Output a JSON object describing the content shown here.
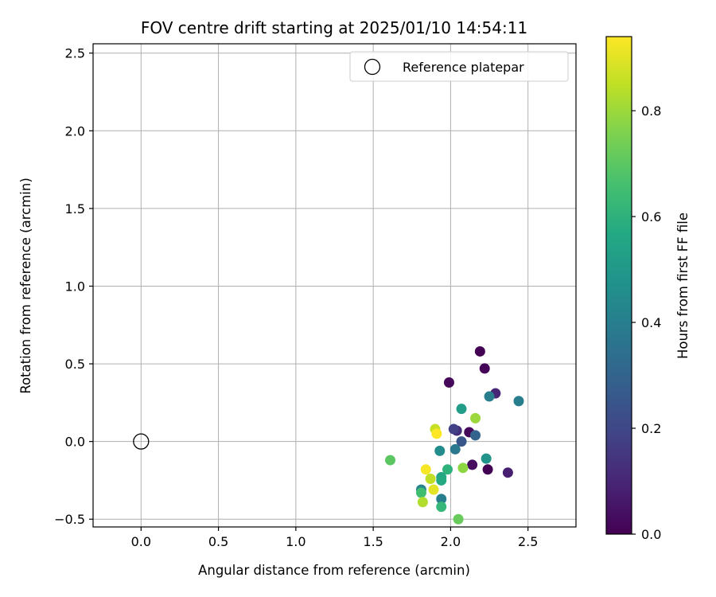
{
  "chart_data": {
    "type": "scatter",
    "title": "FOV centre drift starting at 2025/01/10 14:54:11",
    "xlabel": "Angular distance from reference (arcmin)",
    "ylabel": "Rotation from reference (arcmin)",
    "xlim": [
      -0.31,
      2.81
    ],
    "ylim": [
      -0.55,
      2.56
    ],
    "xticks": [
      0.0,
      0.5,
      1.0,
      1.5,
      2.0,
      2.5
    ],
    "xtick_labels": [
      "0.0",
      "0.5",
      "1.0",
      "1.5",
      "2.0",
      "2.5"
    ],
    "yticks": [
      -0.5,
      0.0,
      0.5,
      1.0,
      1.5,
      2.0,
      2.5
    ],
    "ytick_labels": [
      "−0.5",
      "0.0",
      "0.5",
      "1.0",
      "1.5",
      "2.0",
      "2.5"
    ],
    "grid": true,
    "legend": {
      "location": "top-right",
      "entries": [
        "Reference platepar"
      ]
    },
    "reference_point": {
      "x": 0.0,
      "y": 0.0,
      "marker": "open-circle"
    },
    "colormap": "viridis",
    "colorbar": {
      "label": "Hours from first FF file",
      "range": [
        0.0,
        0.94
      ],
      "ticks": [
        0.0,
        0.2,
        0.4,
        0.6,
        0.8
      ],
      "tick_labels": [
        "0.0",
        "0.2",
        "0.4",
        "0.6",
        "0.8"
      ]
    },
    "points": [
      {
        "x": 2.19,
        "y": 0.58,
        "c": 0.0
      },
      {
        "x": 2.22,
        "y": 0.47,
        "c": 0.01
      },
      {
        "x": 1.99,
        "y": 0.38,
        "c": 0.02
      },
      {
        "x": 2.24,
        "y": -0.18,
        "c": 0.0
      },
      {
        "x": 2.14,
        "y": -0.15,
        "c": 0.03
      },
      {
        "x": 2.12,
        "y": 0.06,
        "c": 0.02
      },
      {
        "x": 2.29,
        "y": 0.31,
        "c": 0.1
      },
      {
        "x": 2.37,
        "y": -0.2,
        "c": 0.08
      },
      {
        "x": 2.04,
        "y": 0.07,
        "c": 0.12
      },
      {
        "x": 2.02,
        "y": 0.08,
        "c": 0.18
      },
      {
        "x": 2.07,
        "y": 0.0,
        "c": 0.25
      },
      {
        "x": 2.16,
        "y": 0.04,
        "c": 0.3
      },
      {
        "x": 2.03,
        "y": -0.05,
        "c": 0.38
      },
      {
        "x": 2.25,
        "y": 0.29,
        "c": 0.4
      },
      {
        "x": 2.44,
        "y": 0.26,
        "c": 0.4
      },
      {
        "x": 1.93,
        "y": -0.06,
        "c": 0.45
      },
      {
        "x": 1.81,
        "y": -0.31,
        "c": 0.42
      },
      {
        "x": 1.94,
        "y": -0.37,
        "c": 0.4
      },
      {
        "x": 2.23,
        "y": -0.11,
        "c": 0.48
      },
      {
        "x": 2.07,
        "y": 0.21,
        "c": 0.52
      },
      {
        "x": 1.94,
        "y": -0.23,
        "c": 0.55
      },
      {
        "x": 1.94,
        "y": -0.25,
        "c": 0.57
      },
      {
        "x": 1.98,
        "y": -0.18,
        "c": 0.6
      },
      {
        "x": 1.94,
        "y": -0.42,
        "c": 0.62
      },
      {
        "x": 1.81,
        "y": -0.33,
        "c": 0.65
      },
      {
        "x": 1.61,
        "y": -0.12,
        "c": 0.7
      },
      {
        "x": 2.05,
        "y": -0.5,
        "c": 0.72
      },
      {
        "x": 2.08,
        "y": -0.17,
        "c": 0.78
      },
      {
        "x": 2.16,
        "y": 0.15,
        "c": 0.8
      },
      {
        "x": 1.82,
        "y": -0.39,
        "c": 0.83
      },
      {
        "x": 1.87,
        "y": -0.24,
        "c": 0.85
      },
      {
        "x": 1.9,
        "y": 0.08,
        "c": 0.86
      },
      {
        "x": 1.89,
        "y": -0.31,
        "c": 0.9
      },
      {
        "x": 1.84,
        "y": -0.18,
        "c": 0.93
      },
      {
        "x": 1.91,
        "y": 0.05,
        "c": 0.94
      }
    ]
  }
}
